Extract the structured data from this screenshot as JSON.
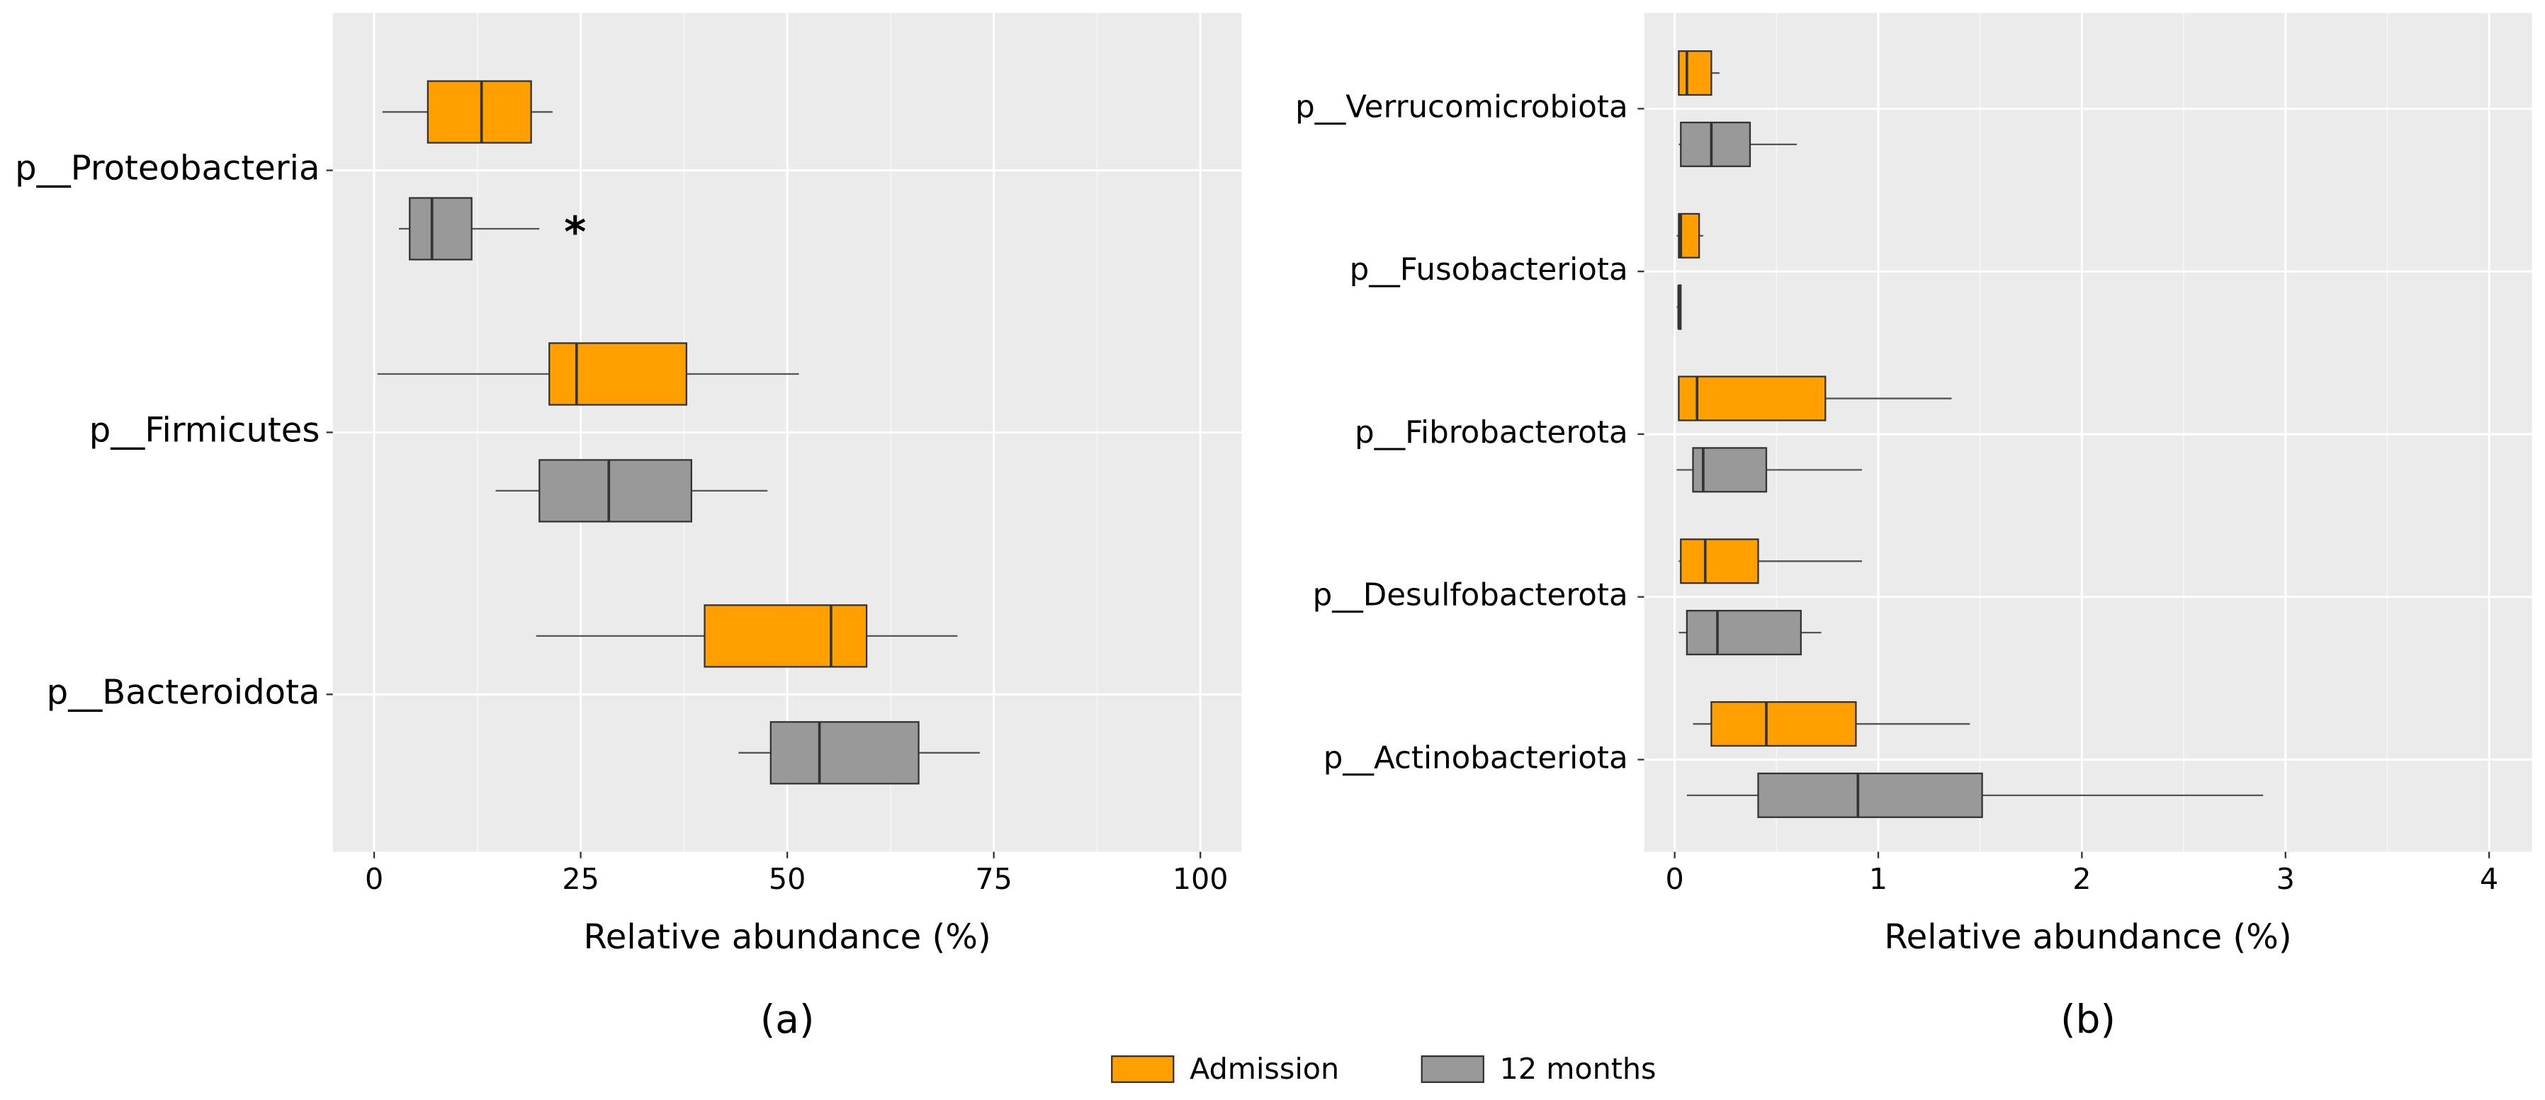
{
  "chart_data": [
    {
      "type": "boxplot",
      "x_label": "Relative abundance (%)",
      "caption": "(a)",
      "annotation": "*",
      "categories": [
        "p__Proteobacteria",
        "p__Firmicutes",
        "p__Bacteroidota"
      ],
      "series": [
        {
          "name": "Admission",
          "color": "#ffa000",
          "values": [
            {
              "whislo": 1,
              "q1": 6.5,
              "med": 13,
              "q3": 19,
              "whishi": 21.6
            },
            {
              "whislo": 0.4,
              "q1": 21.2,
              "med": 24.5,
              "q3": 37.8,
              "whishi": 51.4
            },
            {
              "whislo": 19.6,
              "q1": 40,
              "med": 55.3,
              "q3": 59.6,
              "whishi": 70.6
            }
          ]
        },
        {
          "name": "12 months",
          "color": "#999999",
          "values": [
            {
              "whislo": 3,
              "q1": 4.3,
              "med": 7,
              "q3": 11.8,
              "whishi": 20
            },
            {
              "whislo": 14.7,
              "q1": 20,
              "med": 28.4,
              "q3": 38.4,
              "whishi": 47.6
            },
            {
              "whislo": 44.1,
              "q1": 48,
              "med": 53.9,
              "q3": 65.9,
              "whishi": 73.3
            }
          ]
        }
      ],
      "xlim": [
        -5,
        105
      ],
      "xticks": [
        0,
        25,
        50,
        75,
        100
      ],
      "grid": true
    },
    {
      "type": "boxplot",
      "x_label": "Relative abundance (%)",
      "caption": "(b)",
      "categories": [
        "p__Verrucomicrobiota",
        "p__Fusobacteriota",
        "p__Fibrobacterota",
        "p__Desulfobacterota",
        "p__Actinobacteriota"
      ],
      "series": [
        {
          "color": "#ffa000",
          "values": [
            {
              "whislo": 0.02,
              "q1": 0.02,
              "med": 0.06,
              "q3": 0.18,
              "whishi": 0.22
            },
            {
              "whislo": 0.01,
              "q1": 0.02,
              "med": 0.03,
              "q3": 0.12,
              "whishi": 0.14
            },
            {
              "whislo": 0.02,
              "q1": 0.02,
              "med": 0.11,
              "q3": 0.74,
              "whishi": 1.36
            },
            {
              "whislo": 0.02,
              "q1": 0.03,
              "med": 0.15,
              "q3": 0.41,
              "whishi": 0.92
            },
            {
              "whislo": 0.09,
              "q1": 0.18,
              "med": 0.45,
              "q3": 0.89,
              "whishi": 1.45
            }
          ]
        },
        {
          "color": "#999999",
          "values": [
            {
              "whislo": 0.02,
              "q1": 0.03,
              "med": 0.18,
              "q3": 0.37,
              "whishi": 0.6
            },
            {
              "whislo": 0.01,
              "q1": 0.02,
              "med": 0.02,
              "q3": 0.03,
              "whishi": 0.03
            },
            {
              "whislo": 0.01,
              "q1": 0.09,
              "med": 0.14,
              "q3": 0.45,
              "whishi": 0.92
            },
            {
              "whislo": 0.02,
              "q1": 0.06,
              "med": 0.21,
              "q3": 0.62,
              "whishi": 0.72
            },
            {
              "whislo": 0.06,
              "q1": 0.41,
              "med": 0.9,
              "q3": 1.51,
              "whishi": 2.89
            }
          ]
        }
      ],
      "xlim": [
        -0.15,
        4.21
      ],
      "xticks": [
        0,
        1,
        2,
        3,
        4
      ],
      "grid": true
    }
  ]
}
